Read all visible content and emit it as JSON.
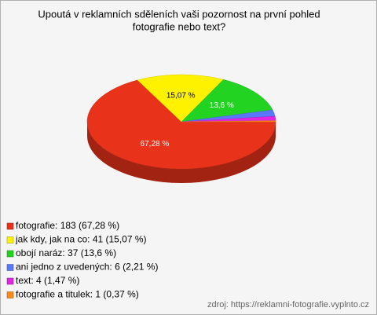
{
  "chart_data": {
    "type": "pie",
    "title": [
      "Upoutá v reklamních sděleních vaši pozornost na první pohled",
      "fotografie nebo text?"
    ],
    "legend": [
      "fotografie: 183 (67,28 %)",
      "jak kdy, jak na co: 41 (15,07 %)",
      "obojí naráz: 37 (13,6 %)",
      "ani jedno z uvedených: 6 (2,21 %)",
      "text: 4 (1,47 %)",
      "fotografie a titulek: 1 (0,37 %)"
    ],
    "values": [
      67.28,
      15.07,
      13.6,
      2.21,
      1.47,
      0.37
    ],
    "value_labels": [
      "67,28 %",
      "15,07 %",
      "13,6 %",
      null,
      null,
      null
    ],
    "colors": [
      "#e8321a",
      "#fff200",
      "#22d322",
      "#5a78ff",
      "#e026e0",
      "#ff8a1a"
    ],
    "source": "zdroj: https://reklamni-fotografie.vyplnto.cz"
  }
}
